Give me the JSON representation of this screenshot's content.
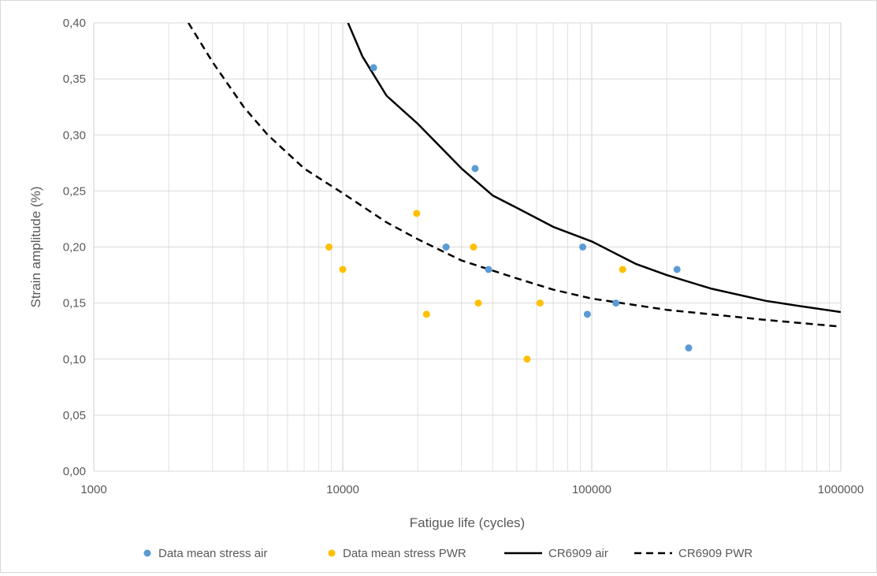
{
  "colors": {
    "air_points": "#5b9bd5",
    "pwr_points": "#ffc000",
    "air_curve": "#000000",
    "pwr_curve": "#000000",
    "grid": "#d9d9d9",
    "text": "#595959"
  },
  "chart_data": {
    "type": "scatter",
    "xlabel": "Fatigue life (cycles)",
    "ylabel": "Strain amplitude (%)",
    "x_scale": "log",
    "xlim": [
      1000,
      1000000
    ],
    "ylim": [
      0,
      0.4
    ],
    "x_ticks": [
      "1000",
      "10000",
      "100000",
      "1000000"
    ],
    "y_ticks": [
      "0,00",
      "0,05",
      "0,10",
      "0,15",
      "0,20",
      "0,25",
      "0,30",
      "0,35",
      "0,40"
    ],
    "grid": true,
    "legend_position": "bottom",
    "series": [
      {
        "name": "Data mean stress air",
        "kind": "points",
        "color": "#5b9bd5",
        "points": [
          [
            13300,
            0.36
          ],
          [
            34000,
            0.27
          ],
          [
            26000,
            0.2
          ],
          [
            38500,
            0.18
          ],
          [
            92000,
            0.2
          ],
          [
            96000,
            0.14
          ],
          [
            125000,
            0.15
          ],
          [
            220000,
            0.18
          ],
          [
            245000,
            0.11
          ]
        ]
      },
      {
        "name": "Data mean stress PWR",
        "kind": "points",
        "color": "#ffc000",
        "points": [
          [
            8800,
            0.2
          ],
          [
            10000,
            0.18
          ],
          [
            19800,
            0.23
          ],
          [
            21700,
            0.14
          ],
          [
            33500,
            0.2
          ],
          [
            35000,
            0.15
          ],
          [
            55000,
            0.1
          ],
          [
            62000,
            0.15
          ],
          [
            133000,
            0.18
          ]
        ]
      },
      {
        "name": "CR6909 air",
        "kind": "line",
        "dash": "solid",
        "color": "#000000",
        "points": [
          [
            10500,
            0.4
          ],
          [
            12000,
            0.37
          ],
          [
            15000,
            0.335
          ],
          [
            20000,
            0.31
          ],
          [
            30000,
            0.27
          ],
          [
            40000,
            0.246
          ],
          [
            50000,
            0.235
          ],
          [
            70000,
            0.218
          ],
          [
            100000,
            0.205
          ],
          [
            150000,
            0.185
          ],
          [
            200000,
            0.175
          ],
          [
            300000,
            0.163
          ],
          [
            500000,
            0.152
          ],
          [
            700000,
            0.147
          ],
          [
            1000000,
            0.142
          ]
        ]
      },
      {
        "name": "CR6909 PWR",
        "kind": "line",
        "dash": "dashed",
        "color": "#000000",
        "points": [
          [
            2400,
            0.4
          ],
          [
            3000,
            0.365
          ],
          [
            4000,
            0.325
          ],
          [
            5000,
            0.3
          ],
          [
            7000,
            0.27
          ],
          [
            10000,
            0.248
          ],
          [
            15000,
            0.222
          ],
          [
            20000,
            0.207
          ],
          [
            30000,
            0.188
          ],
          [
            50000,
            0.172
          ],
          [
            70000,
            0.162
          ],
          [
            100000,
            0.154
          ],
          [
            200000,
            0.144
          ],
          [
            500000,
            0.135
          ],
          [
            1000000,
            0.129
          ]
        ]
      }
    ]
  }
}
